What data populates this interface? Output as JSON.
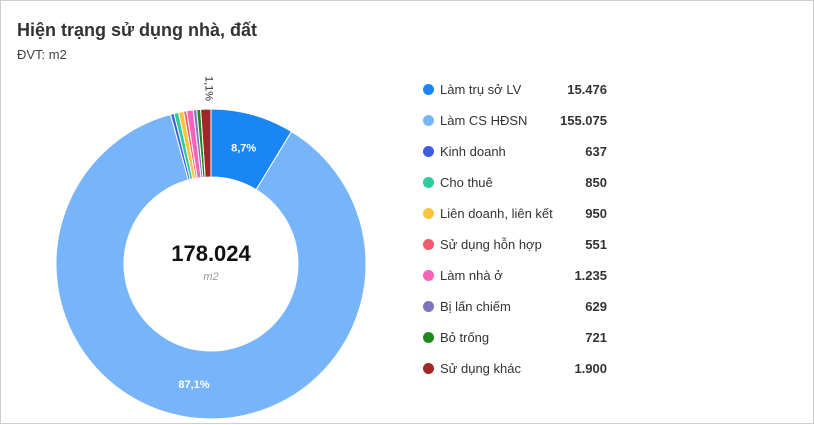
{
  "header": {
    "title": "Hiện trạng sử dụng nhà, đất",
    "subtitle": "ĐVT: m2"
  },
  "chart_data": {
    "type": "pie",
    "variant": "donut",
    "center_value": "178.024",
    "center_unit": "m2",
    "legend_position": "right",
    "slices": [
      {
        "label": "Làm trụ sở LV",
        "value": 15476,
        "display": "15.476",
        "color": "#1a86f5",
        "pct_label": "8,7%"
      },
      {
        "label": "Làm CS HĐSN",
        "value": 155075,
        "display": "155.075",
        "color": "#78b4fa",
        "pct_label": "87,1%"
      },
      {
        "label": "Kinh doanh",
        "value": 637,
        "display": "637",
        "color": "#3d5ce0",
        "pct_label": ""
      },
      {
        "label": "Cho thuê",
        "value": 850,
        "display": "850",
        "color": "#2fcaa0",
        "pct_label": ""
      },
      {
        "label": "Liên doanh, liên kết",
        "value": 950,
        "display": "950",
        "color": "#fcc33c",
        "pct_label": ""
      },
      {
        "label": "Sử dụng hỗn hợp",
        "value": 551,
        "display": "551",
        "color": "#f45a6e",
        "pct_label": ""
      },
      {
        "label": "Làm nhà ở",
        "value": 1235,
        "display": "1.235",
        "color": "#f564b8",
        "pct_label": ""
      },
      {
        "label": "Bị lấn chiếm",
        "value": 629,
        "display": "629",
        "color": "#7d74c0",
        "pct_label": ""
      },
      {
        "label": "Bỏ trống",
        "value": 721,
        "display": "721",
        "color": "#1e8a1e",
        "pct_label": ""
      },
      {
        "label": "Sử dụng khác",
        "value": 1900,
        "display": "1.900",
        "color": "#a32626",
        "pct_label": "1,1%"
      }
    ]
  }
}
